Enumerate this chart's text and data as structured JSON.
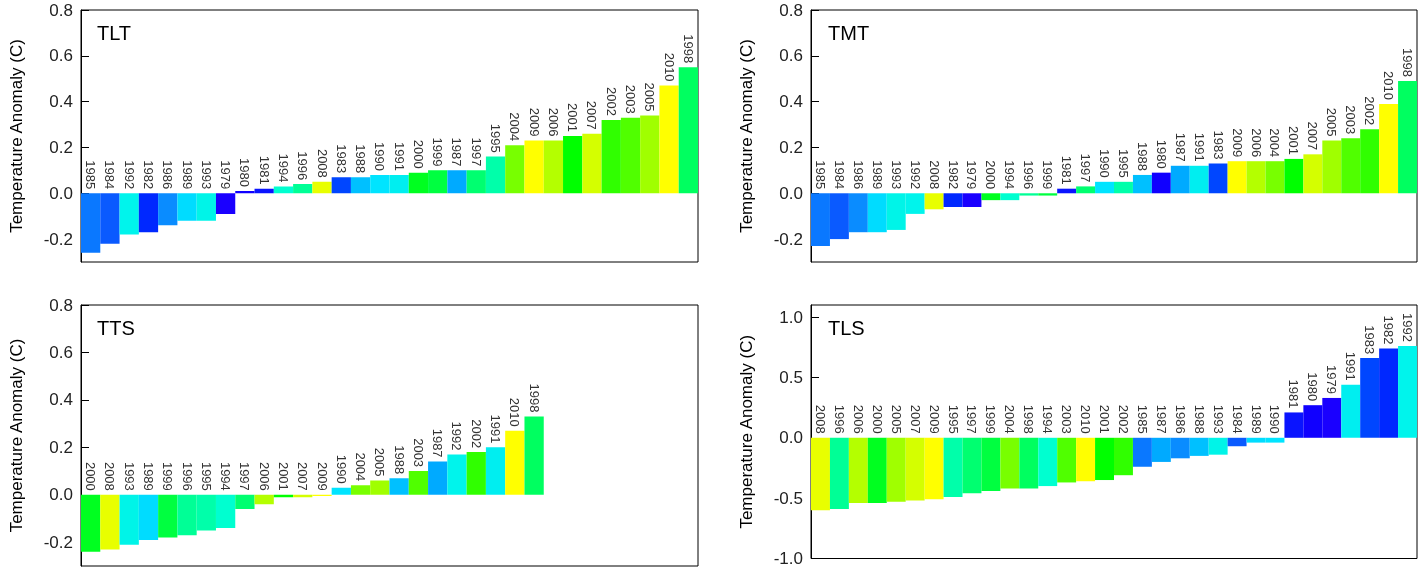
{
  "chart_data": [
    {
      "type": "bar",
      "title": "TLT",
      "ylabel": "Temperature Anomaly (C)",
      "tick_labels": "y",
      "grid": false,
      "categories": [
        "1985",
        "1984",
        "1992",
        "1982",
        "1986",
        "1989",
        "1993",
        "1979",
        "1980",
        "1981",
        "1994",
        "1996",
        "2008",
        "1983",
        "1988",
        "1990",
        "1991",
        "2000",
        "1999",
        "1987",
        "1997",
        "1995",
        "2004",
        "2009",
        "2006",
        "2001",
        "2007",
        "2002",
        "2003",
        "2005",
        "2010",
        "1998"
      ],
      "values": [
        -0.26,
        -0.22,
        -0.18,
        -0.17,
        -0.14,
        -0.12,
        -0.12,
        -0.09,
        0.01,
        0.02,
        0.03,
        0.04,
        0.05,
        0.07,
        0.07,
        0.08,
        0.08,
        0.09,
        0.1,
        0.1,
        0.1,
        0.16,
        0.21,
        0.23,
        0.23,
        0.25,
        0.26,
        0.32,
        0.33,
        0.34,
        0.47,
        0.55
      ],
      "colors": [
        "#0a78ff",
        "#0a5aff",
        "#00f4ec",
        "#0028ff",
        "#0a8cff",
        "#00dcff",
        "#00f4e8",
        "#1a00ff",
        "#1000ff",
        "#0a14ff",
        "#00ffd0",
        "#00ff96",
        "#e8ff00",
        "#0046ff",
        "#00c0ff",
        "#00e4ff",
        "#00eef0",
        "#00ff20",
        "#00ff40",
        "#00aaff",
        "#00ff70",
        "#00ffaa",
        "#78ff00",
        "#ffff00",
        "#b4ff00",
        "#00ff00",
        "#d4ff00",
        "#30ff00",
        "#50ff00",
        "#a0ff00",
        "#ffff00",
        "#00ff60"
      ],
      "ylim": [
        -0.3,
        0.8
      ],
      "yticks": [
        {
          "value": -0.2,
          "label": "-0.2"
        },
        {
          "value": 0,
          "label": "0.0"
        },
        {
          "value": 0.2,
          "label": "0.2"
        },
        {
          "value": 0.4,
          "label": "0.4"
        },
        {
          "value": 0.6,
          "label": "0.6"
        },
        {
          "value": 0.8,
          "label": "0.8"
        }
      ]
    },
    {
      "type": "bar",
      "title": "TMT",
      "ylabel": "Temperature Anomaly (C)",
      "tick_labels": "y",
      "grid": false,
      "categories": [
        "1985",
        "1984",
        "1986",
        "1989",
        "1993",
        "1992",
        "2008",
        "1982",
        "1979",
        "2000",
        "1994",
        "1996",
        "1999",
        "1981",
        "1997",
        "1990",
        "1995",
        "1988",
        "1980",
        "1987",
        "1991",
        "1983",
        "2009",
        "2006",
        "2004",
        "2001",
        "2007",
        "2005",
        "2003",
        "2002",
        "2010",
        "1998"
      ],
      "values": [
        -0.23,
        -0.2,
        -0.17,
        -0.17,
        -0.16,
        -0.09,
        -0.07,
        -0.06,
        -0.06,
        -0.03,
        -0.03,
        -0.01,
        -0.01,
        0.02,
        0.03,
        0.05,
        0.05,
        0.08,
        0.09,
        0.12,
        0.12,
        0.13,
        0.14,
        0.14,
        0.14,
        0.15,
        0.17,
        0.23,
        0.24,
        0.28,
        0.39,
        0.49
      ],
      "colors": [
        "#0a78ff",
        "#0a5aff",
        "#0a8cff",
        "#00dcff",
        "#00f4e8",
        "#00f4ec",
        "#e8ff00",
        "#0028ff",
        "#1a00ff",
        "#00ff20",
        "#00ffd0",
        "#00ff96",
        "#00ff40",
        "#0a14ff",
        "#00ff70",
        "#00e4ff",
        "#00ffaa",
        "#00c0ff",
        "#1000ff",
        "#00aaff",
        "#00eef0",
        "#0046ff",
        "#ffff00",
        "#b4ff00",
        "#78ff00",
        "#00ff00",
        "#d4ff00",
        "#a0ff00",
        "#50ff00",
        "#30ff00",
        "#ffff00",
        "#00ff60"
      ],
      "ylim": [
        -0.3,
        0.8
      ],
      "yticks": [
        {
          "value": -0.2,
          "label": "-0.2"
        },
        {
          "value": 0,
          "label": "0.0"
        },
        {
          "value": 0.2,
          "label": "0.2"
        },
        {
          "value": 0.4,
          "label": "0.4"
        },
        {
          "value": 0.6,
          "label": "0.6"
        },
        {
          "value": 0.8,
          "label": "0.8"
        }
      ]
    },
    {
      "type": "bar",
      "title": "TTS",
      "ylabel": "Temperature Anomaly (C)",
      "tick_labels": "y",
      "grid": false,
      "categories": [
        "2000",
        "2008",
        "1993",
        "1989",
        "1999",
        "1996",
        "1995",
        "1994",
        "1997",
        "2006",
        "2001",
        "2007",
        "2009",
        "1990",
        "2004",
        "2005",
        "1988",
        "2003",
        "1987",
        "1992",
        "2002",
        "1991",
        "2010",
        "1998",
        null,
        null,
        null,
        null,
        null,
        null,
        null,
        null
      ],
      "values": [
        -0.24,
        -0.23,
        -0.21,
        -0.19,
        -0.18,
        -0.17,
        -0.15,
        -0.14,
        -0.06,
        -0.04,
        -0.01,
        -0.01,
        -0.005,
        0.03,
        0.04,
        0.06,
        0.07,
        0.1,
        0.14,
        0.17,
        0.18,
        0.2,
        0.27,
        0.33,
        null,
        null,
        null,
        null,
        null,
        null,
        null,
        null
      ],
      "colors": [
        "#00ff20",
        "#e8ff00",
        "#00f4e8",
        "#00dcff",
        "#00ff40",
        "#00ff96",
        "#00ffaa",
        "#00ffd0",
        "#00ff70",
        "#b4ff00",
        "#00ff00",
        "#d4ff00",
        "#ffff00",
        "#00e4ff",
        "#78ff00",
        "#a0ff00",
        "#00c0ff",
        "#50ff00",
        "#00aaff",
        "#00f4ec",
        "#30ff00",
        "#00eef0",
        "#ffff00",
        "#00ff60",
        null,
        null,
        null,
        null,
        null,
        null,
        null,
        null
      ],
      "ylim": [
        -0.3,
        0.8
      ],
      "yticks": [
        {
          "value": -0.2,
          "label": "-0.2"
        },
        {
          "value": 0,
          "label": "0.0"
        },
        {
          "value": 0.2,
          "label": "0.2"
        },
        {
          "value": 0.4,
          "label": "0.4"
        },
        {
          "value": 0.6,
          "label": "0.6"
        },
        {
          "value": 0.8,
          "label": "0.8"
        }
      ]
    },
    {
      "type": "bar",
      "title": "TLS",
      "ylabel": "Temperature Anomaly (C)",
      "tick_labels": "y",
      "grid": false,
      "categories": [
        "2008",
        "1996",
        "2006",
        "2000",
        "2005",
        "2007",
        "2009",
        "1995",
        "1997",
        "1999",
        "2004",
        "1998",
        "1994",
        "2003",
        "2010",
        "2001",
        "2002",
        "1985",
        "1987",
        "1986",
        "1988",
        "1993",
        "1984",
        "1989",
        "1990",
        "1981",
        "1980",
        "1979",
        "1991",
        "1983",
        "1982",
        "1992"
      ],
      "values": [
        -0.6,
        -0.59,
        -0.54,
        -0.54,
        -0.53,
        -0.52,
        -0.51,
        -0.49,
        -0.46,
        -0.44,
        -0.42,
        -0.42,
        -0.4,
        -0.37,
        -0.36,
        -0.35,
        -0.31,
        -0.24,
        -0.2,
        -0.17,
        -0.15,
        -0.14,
        -0.07,
        -0.04,
        -0.04,
        0.21,
        0.27,
        0.33,
        0.44,
        0.66,
        0.74,
        0.76
      ],
      "colors": [
        "#e8ff00",
        "#00ff96",
        "#b4ff00",
        "#00ff20",
        "#a0ff00",
        "#d4ff00",
        "#ffff00",
        "#00ffaa",
        "#00ff70",
        "#00ff40",
        "#78ff00",
        "#00ff60",
        "#00ffd0",
        "#50ff00",
        "#ffff00",
        "#00ff00",
        "#30ff00",
        "#0a78ff",
        "#00aaff",
        "#0a8cff",
        "#00c0ff",
        "#00f4e8",
        "#0a5aff",
        "#00dcff",
        "#00e4ff",
        "#0a14ff",
        "#1000ff",
        "#1a00ff",
        "#00eef0",
        "#0046ff",
        "#0028ff",
        "#00f4ec"
      ],
      "ylim": [
        -1.0,
        1.1
      ],
      "yticks": [
        {
          "value": -1.0,
          "label": "-1.0"
        },
        {
          "value": -0.5,
          "label": "-0.5"
        },
        {
          "value": 0,
          "label": "0.0"
        },
        {
          "value": 0.5,
          "label": "0.5"
        },
        {
          "value": 1.0,
          "label": "1.0"
        }
      ]
    }
  ]
}
